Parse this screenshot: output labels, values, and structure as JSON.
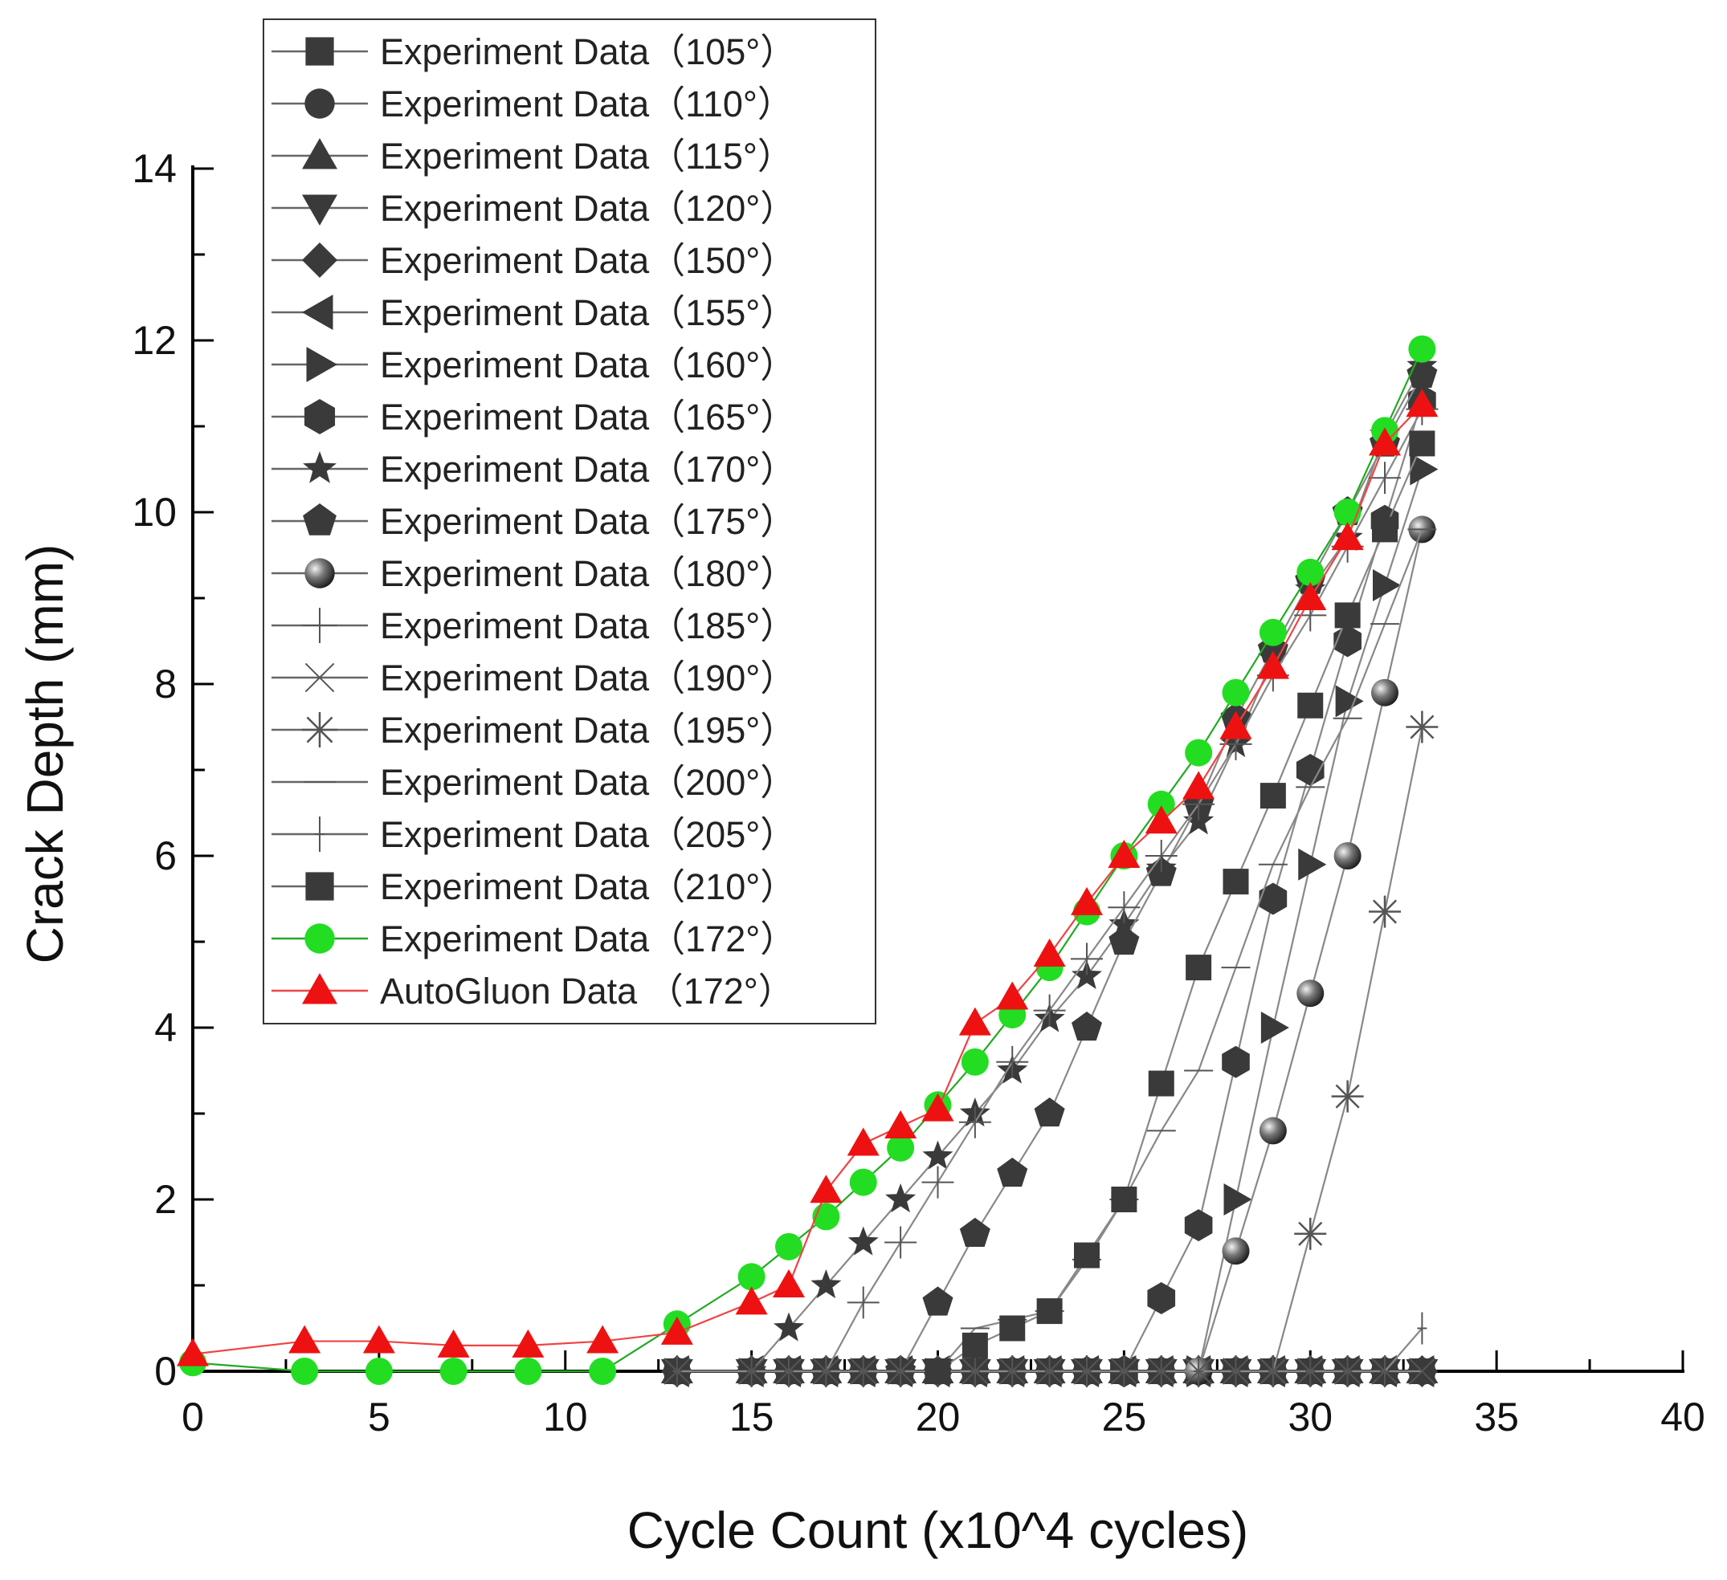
{
  "chart_data": {
    "type": "line",
    "title": "",
    "xlabel": "Cycle Count (x10^4 cycles)",
    "ylabel": "Crack Depth (mm)",
    "xlim": [
      0,
      40
    ],
    "ylim": [
      0,
      14
    ],
    "xticks": [
      0,
      5,
      10,
      15,
      20,
      25,
      30,
      35,
      40
    ],
    "yticks": [
      0,
      2,
      4,
      6,
      8,
      10,
      12,
      14
    ],
    "grid": false,
    "legend_position": "top-left",
    "series": [
      {
        "name": "Experiment Data（105°）",
        "marker": "square",
        "color": "#3a3a3a",
        "x": [
          13,
          15,
          16,
          17,
          18,
          19,
          20,
          21,
          22,
          23,
          24,
          25,
          26,
          27,
          28,
          29,
          30,
          31,
          32,
          33
        ],
        "y": [
          0,
          0,
          0,
          0,
          0,
          0,
          0,
          0,
          0,
          0,
          0,
          0,
          0,
          0,
          0,
          0,
          0,
          0,
          0,
          0
        ]
      },
      {
        "name": "Experiment Data（110°）",
        "marker": "circle",
        "color": "#3a3a3a",
        "x": [
          13,
          15,
          16,
          17,
          18,
          19,
          20,
          21,
          22,
          23,
          24,
          25,
          26,
          27,
          28,
          29,
          30,
          31,
          32,
          33
        ],
        "y": [
          0,
          0,
          0,
          0,
          0,
          0,
          0,
          0,
          0,
          0,
          0,
          0,
          0,
          0,
          0,
          0,
          0,
          0,
          0,
          0
        ]
      },
      {
        "name": "Experiment Data（115°）",
        "marker": "triangle-up",
        "color": "#3a3a3a",
        "x": [
          13,
          15,
          16,
          17,
          18,
          19,
          20,
          21,
          22,
          23,
          24,
          25,
          26,
          27,
          28,
          29,
          30,
          31,
          32,
          33
        ],
        "y": [
          0,
          0,
          0,
          0,
          0,
          0,
          0,
          0,
          0,
          0,
          0,
          0,
          0,
          0,
          0,
          0,
          0,
          0,
          0,
          0
        ]
      },
      {
        "name": "Experiment Data（120°）",
        "marker": "triangle-down",
        "color": "#3a3a3a",
        "x": [
          13,
          15,
          16,
          17,
          18,
          19,
          20,
          21,
          22,
          23,
          24,
          25,
          26,
          27,
          28,
          29,
          30,
          31,
          32,
          33
        ],
        "y": [
          0,
          0,
          0,
          0,
          0,
          0,
          0,
          0,
          0,
          0,
          0,
          0,
          0,
          0,
          0,
          0,
          0,
          0,
          0,
          0
        ]
      },
      {
        "name": "Experiment Data（150°）",
        "marker": "diamond",
        "color": "#3a3a3a",
        "x": [
          13,
          15,
          16,
          17,
          18,
          19,
          20,
          21,
          22,
          23,
          24,
          25,
          26,
          27,
          28,
          29,
          30,
          31,
          32,
          33
        ],
        "y": [
          0,
          0,
          0,
          0,
          0,
          0,
          0,
          0,
          0,
          0,
          0,
          0,
          0,
          0,
          0,
          0,
          0,
          0,
          0,
          0
        ]
      },
      {
        "name": "Experiment Data（155°）",
        "marker": "triangle-left",
        "color": "#3a3a3a",
        "x": [
          13,
          15,
          16,
          17,
          18,
          19,
          20,
          21,
          22,
          23,
          24,
          25,
          26,
          27,
          28,
          29,
          30,
          31,
          32,
          33
        ],
        "y": [
          0,
          0,
          0,
          0,
          0,
          0,
          0,
          0,
          0,
          0,
          0,
          0,
          0,
          0,
          0,
          0,
          0,
          0,
          0,
          0
        ]
      },
      {
        "name": "Experiment Data（160°）",
        "marker": "triangle-right",
        "color": "#3a3a3a",
        "x": [
          27,
          28,
          29,
          30,
          31,
          32,
          33
        ],
        "y": [
          0,
          2.0,
          4.0,
          5.9,
          7.8,
          9.15,
          10.5
        ]
      },
      {
        "name": "Experiment Data（165°）",
        "marker": "hexagon",
        "color": "#3a3a3a",
        "x": [
          25,
          26,
          27,
          28,
          29,
          30,
          31,
          32,
          33
        ],
        "y": [
          0,
          0.85,
          1.7,
          3.6,
          5.5,
          7.0,
          8.5,
          9.9,
          11.3
        ]
      },
      {
        "name": "Experiment Data（170°）",
        "marker": "star",
        "color": "#3a3a3a",
        "x": [
          15,
          16,
          17,
          18,
          19,
          20,
          21,
          22,
          23,
          24,
          25,
          26,
          27,
          28,
          29,
          30,
          31,
          32,
          33
        ],
        "y": [
          0,
          0.5,
          1.0,
          1.5,
          2.0,
          2.5,
          3.0,
          3.5,
          4.1,
          4.6,
          5.2,
          5.85,
          6.4,
          7.3,
          8.3,
          9.1,
          9.7,
          10.9,
          11.7
        ]
      },
      {
        "name": "Experiment Data（175°）",
        "marker": "pentagon",
        "color": "#3a3a3a",
        "x": [
          19,
          20,
          21,
          22,
          23,
          24,
          25,
          26,
          27,
          28,
          29,
          30,
          31,
          32,
          33
        ],
        "y": [
          0,
          0.8,
          1.6,
          2.3,
          3.0,
          4.0,
          5.0,
          5.8,
          6.6,
          7.6,
          8.4,
          9.2,
          10.0,
          10.8,
          11.6
        ]
      },
      {
        "name": "Experiment Data（180°）",
        "marker": "sphere",
        "color": "#3a3a3a",
        "x": [
          27,
          28,
          29,
          30,
          31,
          32,
          33
        ],
        "y": [
          0,
          1.4,
          2.8,
          4.4,
          6.0,
          7.9,
          9.8
        ]
      },
      {
        "name": "Experiment Data（185°）",
        "marker": "plus",
        "color": "#555555",
        "x": [
          17,
          18,
          19,
          20,
          21,
          22,
          23,
          24,
          25,
          26,
          27,
          28,
          29,
          30,
          31,
          32,
          33
        ],
        "y": [
          0,
          0.8,
          1.5,
          2.2,
          2.9,
          3.6,
          4.2,
          4.8,
          5.4,
          6.0,
          6.6,
          7.3,
          8.1,
          8.8,
          9.6,
          10.4,
          11.2
        ]
      },
      {
        "name": "Experiment Data（190°）",
        "marker": "cross",
        "color": "#555555",
        "x": [
          13,
          15,
          16,
          17,
          18,
          19,
          20,
          21,
          22,
          23,
          24,
          25,
          26,
          27,
          28,
          29,
          30,
          31,
          32,
          33
        ],
        "y": [
          0,
          0,
          0,
          0,
          0,
          0,
          0,
          0,
          0,
          0,
          0,
          0,
          0,
          0,
          0,
          0,
          0,
          0,
          0,
          0
        ]
      },
      {
        "name": "Experiment Data（195°）",
        "marker": "asterisk",
        "color": "#555555",
        "x": [
          29,
          30,
          31,
          32,
          33
        ],
        "y": [
          0,
          1.6,
          3.2,
          5.35,
          7.5
        ]
      },
      {
        "name": "Experiment Data（200°）",
        "marker": "dash",
        "color": "#555555",
        "x": [
          20,
          21,
          22,
          23,
          24,
          25,
          26,
          27,
          28,
          29,
          30,
          31,
          32,
          33
        ],
        "y": [
          0,
          0.5,
          0.6,
          0.7,
          1.3,
          2.0,
          2.8,
          3.5,
          4.7,
          5.9,
          6.8,
          7.6,
          8.7,
          9.8
        ]
      },
      {
        "name": "Experiment Data（205°）",
        "marker": "vbar",
        "color": "#555555",
        "x": [
          13,
          15,
          16,
          17,
          18,
          19,
          20,
          21,
          22,
          23,
          24,
          25,
          26,
          27,
          28,
          29,
          30,
          31,
          32,
          33
        ],
        "y": [
          0,
          0,
          0,
          0,
          0,
          0,
          0,
          0,
          0,
          0,
          0,
          0,
          0,
          0,
          0,
          0,
          0,
          0,
          0,
          0.5
        ]
      },
      {
        "name": "Experiment Data（210°）",
        "marker": "square",
        "color": "#3a3a3a",
        "x": [
          20,
          21,
          22,
          23,
          24,
          25,
          26,
          27,
          28,
          29,
          30,
          31,
          32,
          33
        ],
        "y": [
          0,
          0.3,
          0.5,
          0.7,
          1.35,
          2.0,
          3.35,
          4.7,
          5.7,
          6.7,
          7.75,
          8.8,
          9.8,
          10.8
        ]
      },
      {
        "name": "Experiment Data（172°）",
        "marker": "circle",
        "color": "#22dd22",
        "x": [
          0,
          3,
          5,
          7,
          9,
          11,
          13,
          15,
          16,
          17,
          18,
          19,
          20,
          21,
          22,
          23,
          24,
          25,
          26,
          27,
          28,
          29,
          30,
          31,
          32,
          33
        ],
        "y": [
          0.1,
          0,
          0,
          0,
          0,
          0,
          0.55,
          1.1,
          1.45,
          1.8,
          2.2,
          2.6,
          3.1,
          3.6,
          4.15,
          4.7,
          5.35,
          6.0,
          6.6,
          7.2,
          7.9,
          8.6,
          9.3,
          10.0,
          10.95,
          11.9
        ]
      },
      {
        "name": "AutoGluon Data （172°）",
        "marker": "triangle-up",
        "color": "#ee1111",
        "x": [
          0,
          3,
          5,
          7,
          9,
          11,
          13,
          15,
          16,
          17,
          18,
          19,
          20,
          21,
          22,
          23,
          24,
          25,
          26,
          27,
          28,
          29,
          30,
          31,
          32,
          33
        ],
        "y": [
          0.2,
          0.35,
          0.35,
          0.3,
          0.3,
          0.35,
          0.45,
          0.8,
          1.0,
          2.1,
          2.65,
          2.85,
          3.05,
          4.05,
          4.35,
          4.85,
          5.45,
          6.0,
          6.4,
          6.8,
          7.5,
          8.2,
          9.0,
          9.7,
          10.8,
          11.25
        ]
      }
    ]
  }
}
